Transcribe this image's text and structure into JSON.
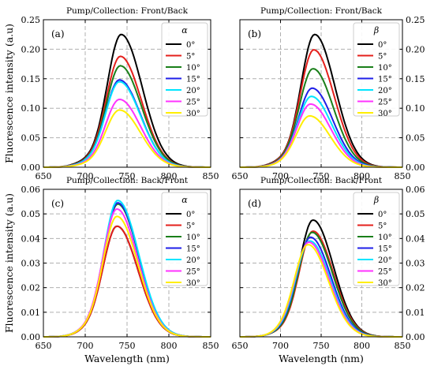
{
  "chart_data": [
    {
      "type": "line",
      "panel_label": "(a)",
      "title": "Pump/Collection: Front/Back",
      "xlabel": "",
      "ylabel": "Fluorescence intensity (a.u)",
      "xlim": [
        650,
        850
      ],
      "ylim": [
        0,
        0.25
      ],
      "xticks": [
        "650",
        "700",
        "750",
        "800",
        "850"
      ],
      "yticks": [
        "0.00",
        "0.05",
        "0.10",
        "0.15",
        "0.20",
        "0.25"
      ],
      "legend_title": "α",
      "legend_position": "top-right",
      "grid": "dashed",
      "series": [
        {
          "name": "0°",
          "color": "#000000",
          "peak": 0.225,
          "center": 743
        },
        {
          "name": "5°",
          "color": "#e4201c",
          "peak": 0.188,
          "center": 742
        },
        {
          "name": "10°",
          "color": "#1a7f1a",
          "peak": 0.172,
          "center": 742
        },
        {
          "name": "15°",
          "color": "#1f1fe8",
          "peak": 0.148,
          "center": 741
        },
        {
          "name": "20°",
          "color": "#00e5ff",
          "peak": 0.145,
          "center": 741
        },
        {
          "name": "25°",
          "color": "#ff33ff",
          "peak": 0.115,
          "center": 741
        },
        {
          "name": "30°",
          "color": "#ffee00",
          "peak": 0.097,
          "center": 741
        }
      ]
    },
    {
      "type": "line",
      "panel_label": "(b)",
      "title": "Pump/Collection: Front/Back",
      "xlabel": "",
      "ylabel": "",
      "xlim": [
        650,
        850
      ],
      "ylim": [
        0,
        0.25
      ],
      "xticks": [
        "650",
        "700",
        "750",
        "800",
        "850"
      ],
      "yticks": [
        "0.00",
        "0.05",
        "0.10",
        "0.15",
        "0.20",
        "0.25"
      ],
      "legend_title": "β",
      "legend_position": "top-right",
      "grid": "dashed",
      "series": [
        {
          "name": "0°",
          "color": "#000000",
          "peak": 0.225,
          "center": 742
        },
        {
          "name": "5°",
          "color": "#e4201c",
          "peak": 0.199,
          "center": 741
        },
        {
          "name": "10°",
          "color": "#1a7f1a",
          "peak": 0.167,
          "center": 740
        },
        {
          "name": "15°",
          "color": "#1f1fe8",
          "peak": 0.134,
          "center": 739
        },
        {
          "name": "20°",
          "color": "#00e5ff",
          "peak": 0.12,
          "center": 738
        },
        {
          "name": "25°",
          "color": "#ff33ff",
          "peak": 0.107,
          "center": 737
        },
        {
          "name": "30°",
          "color": "#ffee00",
          "peak": 0.087,
          "center": 736
        }
      ]
    },
    {
      "type": "line",
      "panel_label": "(c)",
      "title": "Pump/Collection: Back/Front",
      "xlabel": "Wavelength (nm)",
      "ylabel": "Fluorescence intensity (a.u)",
      "xlim": [
        650,
        850
      ],
      "ylim": [
        0,
        0.06
      ],
      "xticks": [
        "650",
        "700",
        "750",
        "800",
        "850"
      ],
      "yticks": [
        "0.00",
        "0.01",
        "0.02",
        "0.03",
        "0.04",
        "0.05",
        "0.06"
      ],
      "legend_title": "α",
      "legend_position": "top-right",
      "grid": "dashed",
      "series": [
        {
          "name": "0°",
          "color": "#000000",
          "peak": 0.045,
          "center": 738
        },
        {
          "name": "5°",
          "color": "#e4201c",
          "peak": 0.045,
          "center": 738
        },
        {
          "name": "10°",
          "color": "#1a7f1a",
          "peak": 0.054,
          "center": 739
        },
        {
          "name": "15°",
          "color": "#1f1fe8",
          "peak": 0.0545,
          "center": 739
        },
        {
          "name": "20°",
          "color": "#00e5ff",
          "peak": 0.0555,
          "center": 739
        },
        {
          "name": "25°",
          "color": "#ff33ff",
          "peak": 0.052,
          "center": 738
        },
        {
          "name": "30°",
          "color": "#ffee00",
          "peak": 0.049,
          "center": 738
        }
      ]
    },
    {
      "type": "line",
      "panel_label": "(d)",
      "title": "Pump/Collection: Back/Front",
      "xlabel": "Wavelength (nm)",
      "ylabel": "",
      "xlim": [
        650,
        850
      ],
      "ylim": [
        0,
        0.06
      ],
      "xticks": [
        "650",
        "700",
        "750",
        "800",
        "850"
      ],
      "yticks": [
        "0.00",
        "0.01",
        "0.02",
        "0.03",
        "0.04",
        "0.05",
        "0.06"
      ],
      "legend_title": "β",
      "legend_position": "top-right",
      "grid": "dashed",
      "series": [
        {
          "name": "0°",
          "color": "#000000",
          "peak": 0.0475,
          "center": 740
        },
        {
          "name": "5°",
          "color": "#e4201c",
          "peak": 0.043,
          "center": 740
        },
        {
          "name": "10°",
          "color": "#1a7f1a",
          "peak": 0.0425,
          "center": 739
        },
        {
          "name": "15°",
          "color": "#1f1fe8",
          "peak": 0.0405,
          "center": 737
        },
        {
          "name": "20°",
          "color": "#00e5ff",
          "peak": 0.039,
          "center": 736
        },
        {
          "name": "25°",
          "color": "#ff33ff",
          "peak": 0.0385,
          "center": 735
        },
        {
          "name": "30°",
          "color": "#ffee00",
          "peak": 0.0375,
          "center": 734
        }
      ]
    }
  ]
}
